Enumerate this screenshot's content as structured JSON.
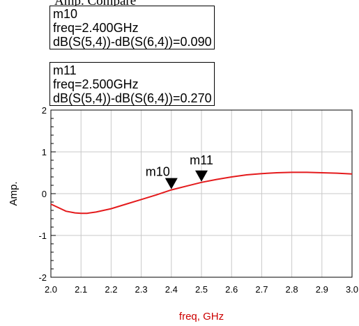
{
  "header_text": "Amp. Compare",
  "marker_boxes": [
    {
      "name": "m10",
      "line1": "freq=2.400GHz",
      "line2": "dB(S(5,4))-dB(S(6,4))=0.090"
    },
    {
      "name": "m11",
      "line1": "freq=2.500GHz",
      "line2": "dB(S(5,4))-dB(S(6,4))=0.270"
    }
  ],
  "chart_data": {
    "type": "line",
    "xlabel": "freq, GHz",
    "ylabel": "Amp.",
    "xlim": [
      2.0,
      3.0
    ],
    "ylim": [
      -2,
      2
    ],
    "xticks": [
      "2.0",
      "2.1",
      "2.2",
      "2.3",
      "2.4",
      "2.5",
      "2.6",
      "2.7",
      "2.8",
      "2.9",
      "3.0"
    ],
    "yticks": [
      "2",
      "1",
      "0",
      "-1",
      "-2"
    ],
    "grid": true,
    "series": [
      {
        "color": "#e41a1c",
        "x": [
          2.0,
          2.05,
          2.08,
          2.1,
          2.12,
          2.15,
          2.2,
          2.25,
          2.3,
          2.35,
          2.4,
          2.45,
          2.5,
          2.55,
          2.6,
          2.65,
          2.7,
          2.75,
          2.8,
          2.85,
          2.9,
          2.95,
          3.0
        ],
        "y": [
          -0.25,
          -0.42,
          -0.46,
          -0.47,
          -0.47,
          -0.44,
          -0.36,
          -0.25,
          -0.14,
          -0.03,
          0.09,
          0.18,
          0.27,
          0.34,
          0.4,
          0.45,
          0.48,
          0.5,
          0.51,
          0.51,
          0.5,
          0.49,
          0.47
        ]
      }
    ],
    "markers": [
      {
        "label": "m10",
        "x": 2.4,
        "y": 0.09
      },
      {
        "label": "m11",
        "x": 2.5,
        "y": 0.27
      }
    ],
    "axis_label_color": "#cc0000"
  }
}
